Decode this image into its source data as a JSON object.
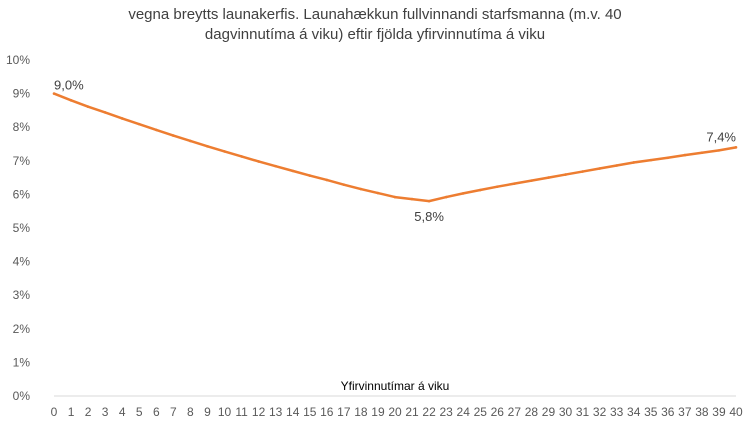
{
  "chart_data": {
    "type": "line",
    "title_lines": [
      "vegna breytts launakerfis. Launahækkun fullvinnandi starfsmanna (m.v. 40",
      "dagvinnutíma á viku) eftir fjölda yfirvinnutíma á viku"
    ],
    "xlabel": "Yfirvinnutímar á viku",
    "ylabel": "",
    "ylim": [
      0,
      10
    ],
    "yticks": [
      "0%",
      "1%",
      "2%",
      "3%",
      "4%",
      "5%",
      "6%",
      "7%",
      "8%",
      "9%",
      "10%"
    ],
    "x": [
      0,
      1,
      2,
      3,
      4,
      5,
      6,
      7,
      8,
      9,
      10,
      11,
      12,
      13,
      14,
      15,
      16,
      17,
      18,
      19,
      20,
      21,
      22,
      23,
      24,
      25,
      26,
      27,
      28,
      29,
      30,
      31,
      32,
      33,
      34,
      35,
      36,
      37,
      38,
      39,
      40
    ],
    "series": [
      {
        "values": [
          9.0,
          8.8,
          8.61,
          8.44,
          8.26,
          8.09,
          7.92,
          7.75,
          7.59,
          7.43,
          7.28,
          7.13,
          6.98,
          6.84,
          6.7,
          6.56,
          6.43,
          6.29,
          6.16,
          6.04,
          5.92,
          5.86,
          5.8,
          5.92,
          6.03,
          6.13,
          6.23,
          6.32,
          6.41,
          6.5,
          6.59,
          6.68,
          6.77,
          6.86,
          6.95,
          7.02,
          7.09,
          7.17,
          7.24,
          7.31,
          7.4
        ],
        "color": "#ED7D31"
      }
    ],
    "annotations": [
      {
        "x": 0,
        "text": "9,0%"
      },
      {
        "x": 22,
        "text": "5,8%"
      },
      {
        "x": 40,
        "text": "7,4%"
      }
    ],
    "grid": false,
    "legend": "none"
  }
}
